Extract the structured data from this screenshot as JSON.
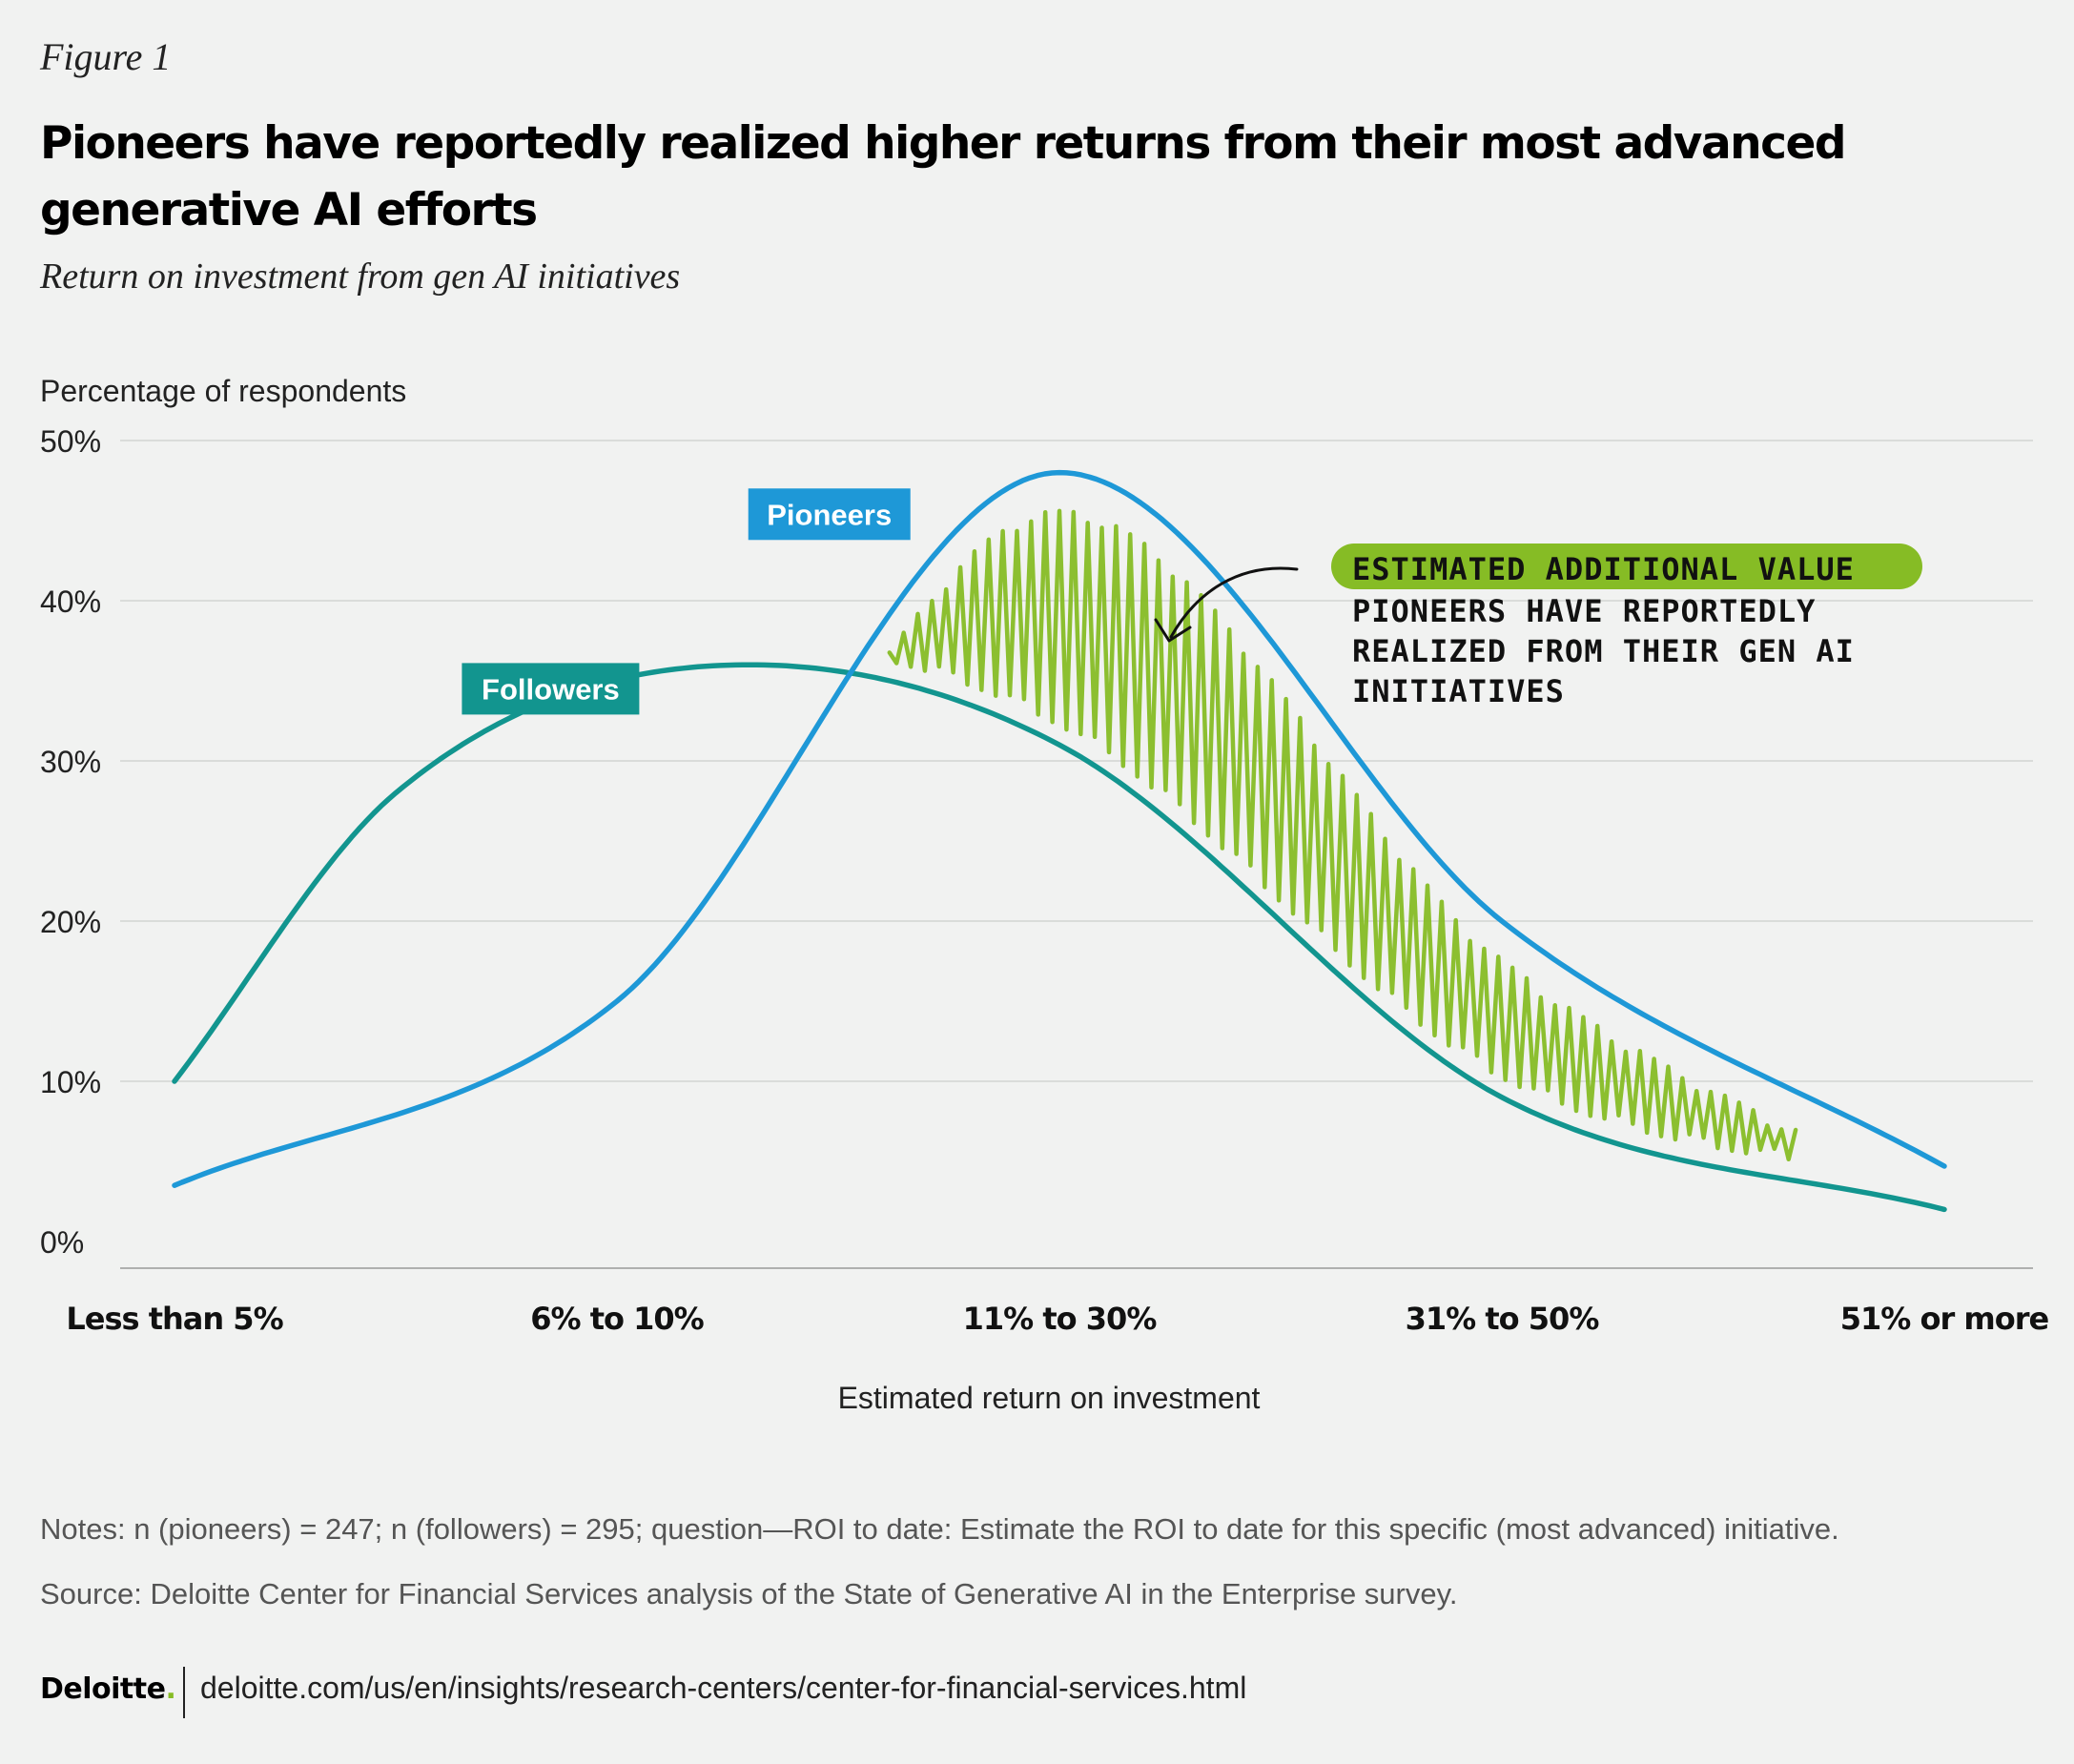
{
  "figure_label": "Figure 1",
  "title": "Pioneers have reportedly realized higher returns from their most advanced generative AI efforts",
  "subtitle": "Return on investment from gen AI initiatives",
  "colors": {
    "pioneers": "#1e98d7",
    "followers": "#12958f",
    "annotation": "#86bc25",
    "grid": "#d3d5d3"
  },
  "chart_data": {
    "type": "line",
    "title": "Return on investment from gen AI initiatives",
    "xlabel": "Estimated return on investment",
    "ylabel": "Percentage of respondents",
    "categories": [
      "Less than 5%",
      "6% to 10%",
      "11% to 30%",
      "31% to 50%",
      "51% or more"
    ],
    "ylim": [
      0,
      50
    ],
    "yticks": [
      "0%",
      "10%",
      "20%",
      "30%",
      "40%",
      "50%"
    ],
    "grid": true,
    "curve": "smoothed",
    "series": [
      {
        "name": "Followers",
        "color": "#12958f",
        "x": [
          0,
          0.5,
          1.3,
          2,
          3,
          4
        ],
        "y": [
          10,
          28,
          36,
          31,
          9,
          2
        ]
      },
      {
        "name": "Pioneers",
        "color": "#1e98d7",
        "x": [
          0,
          1,
          2,
          3,
          4
        ],
        "y": [
          3.5,
          15,
          48,
          20,
          4.7
        ]
      }
    ],
    "annotation": {
      "heading": "ESTIMATED ADDITIONAL VALUE",
      "lines": [
        "PIONEERS HAVE REPORTEDLY",
        "REALIZED FROM THEIR GEN AI",
        "INITIATIVES"
      ]
    }
  },
  "notes": "Notes: n (pioneers) = 247; n (followers) = 295; question—ROI to date: Estimate the ROI to date for this specific (most advanced) initiative.",
  "source": "Source: Deloitte Center for Financial Services analysis of the State of Generative AI in the Enterprise survey.",
  "footer": {
    "brand": "Deloitte",
    "brand_dot": ".",
    "url": "deloitte.com/us/en/insights/research-centers/center-for-financial-services.html"
  }
}
